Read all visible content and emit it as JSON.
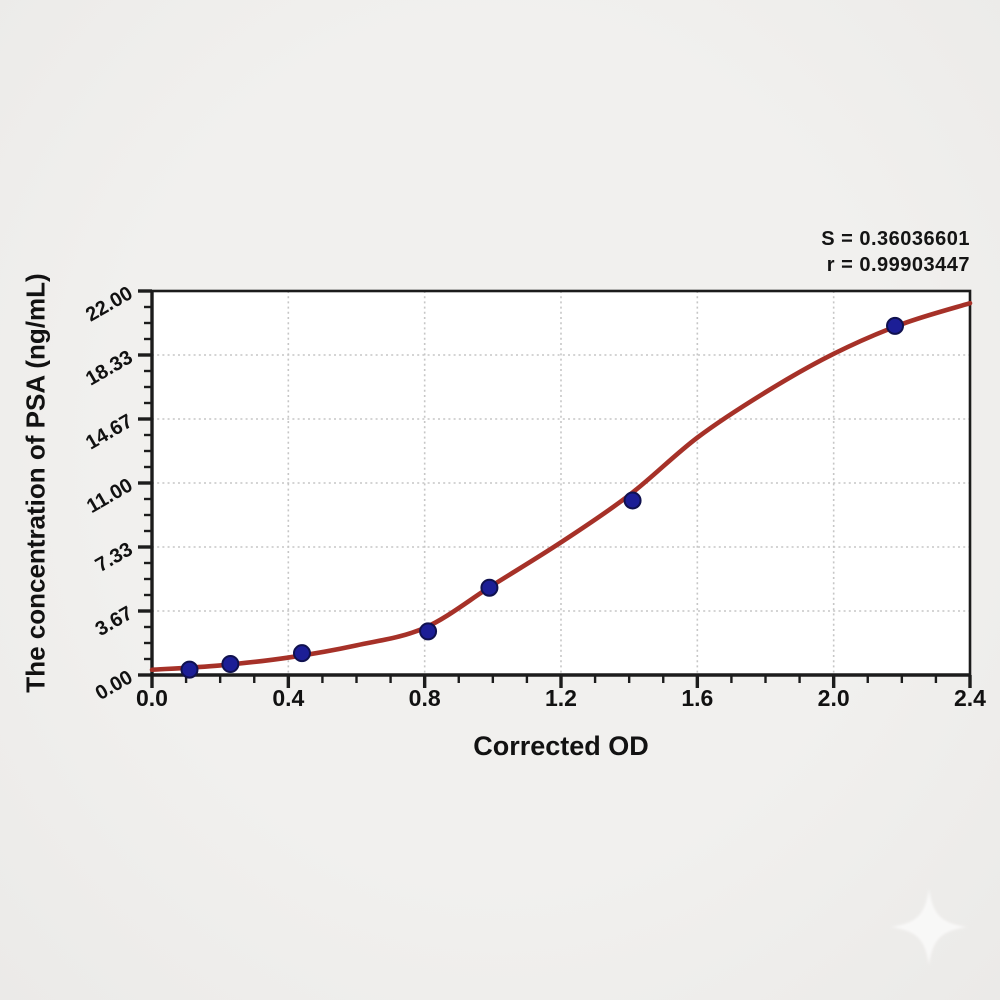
{
  "page": {
    "background": "#efeeec"
  },
  "annotation": {
    "s_label": "S = 0.36036601",
    "r_label": "r = 0.99903447"
  },
  "chart_data": {
    "type": "scatter",
    "title": "",
    "xlabel": "Corrected OD",
    "ylabel": "The concentration of PSA (ng/mL)",
    "xlim": [
      0,
      2.4
    ],
    "ylim": [
      0,
      22
    ],
    "x_major_ticks": [
      0,
      0.4,
      0.8,
      1.2,
      1.6,
      2.0,
      2.4
    ],
    "x_tick_labels": [
      "0.0",
      "0.4",
      "0.8",
      "1.2",
      "1.6",
      "2.0",
      "2.4"
    ],
    "x_minor_per_major": 4,
    "y_major_ticks": [
      0,
      3.6667,
      7.3333,
      11,
      14.6667,
      18.3333,
      22
    ],
    "y_tick_labels": [
      "0.00",
      "3.67",
      "7.33",
      "11.00",
      "14.67",
      "18.33",
      "22.00"
    ],
    "y_minor_per_major": 4,
    "grid": "dotted gridlines at interior major ticks, both axes",
    "legend": "none",
    "series": [
      {
        "name": "standard-points",
        "type": "scatter",
        "points": [
          {
            "x": 0.11,
            "y": 0.31
          },
          {
            "x": 0.23,
            "y": 0.63
          },
          {
            "x": 0.44,
            "y": 1.25
          },
          {
            "x": 0.81,
            "y": 2.5
          },
          {
            "x": 0.99,
            "y": 5.0
          },
          {
            "x": 1.41,
            "y": 10.0
          },
          {
            "x": 2.18,
            "y": 20.0
          }
        ]
      },
      {
        "name": "fitted-curve",
        "type": "line",
        "points": [
          {
            "x": 0.0,
            "y": 0.3
          },
          {
            "x": 0.2,
            "y": 0.55
          },
          {
            "x": 0.4,
            "y": 1.0
          },
          {
            "x": 0.6,
            "y": 1.7
          },
          {
            "x": 0.8,
            "y": 2.7
          },
          {
            "x": 1.0,
            "y": 5.15
          },
          {
            "x": 1.2,
            "y": 7.6
          },
          {
            "x": 1.4,
            "y": 10.3
          },
          {
            "x": 1.6,
            "y": 13.6
          },
          {
            "x": 1.8,
            "y": 16.2
          },
          {
            "x": 2.0,
            "y": 18.4
          },
          {
            "x": 2.2,
            "y": 20.1
          },
          {
            "x": 2.4,
            "y": 21.3
          }
        ]
      }
    ],
    "stats": {
      "S": "0.36036601",
      "r": "0.99903447"
    },
    "colors": {
      "curve": "#a63128",
      "point_fill": "#1c1e96",
      "point_stroke": "#10114f",
      "axis": "#1c1c1c",
      "grid": "#c6c6c6",
      "text": "#111111",
      "plot_background": "#ffffff"
    }
  },
  "watermark": {
    "icon": "sparkle-icon",
    "color": "#ffffff"
  }
}
